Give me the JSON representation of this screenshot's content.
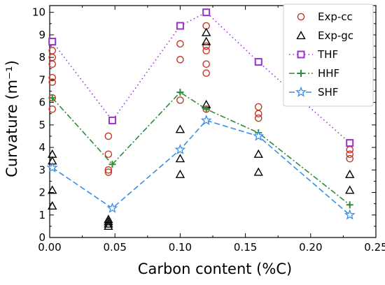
{
  "chart_data": {
    "type": "scatter",
    "xlabel": "Carbon content (%C)",
    "ylabel": "Curvature (m⁻¹)",
    "xlim": [
      0,
      0.25
    ],
    "ylim": [
      0,
      10.3
    ],
    "x_ticks": [
      "0.00",
      "0.05",
      "0.10",
      "0.15",
      "0.20",
      "0.25"
    ],
    "y_ticks": [
      "0",
      "1",
      "2",
      "3",
      "4",
      "5",
      "6",
      "7",
      "8",
      "9",
      "10"
    ],
    "x_tick_values": [
      0,
      0.05,
      0.1,
      0.15,
      0.2,
      0.25
    ],
    "y_tick_values": [
      0,
      1,
      2,
      3,
      4,
      5,
      6,
      7,
      8,
      9,
      10
    ],
    "grid": false,
    "legend_position": "top-right",
    "series": [
      {
        "name": "Exp-cc",
        "kind": "markers",
        "marker": "circle",
        "color": "#c0392b",
        "points": [
          [
            0.002,
            8.3
          ],
          [
            0.002,
            8.0
          ],
          [
            0.002,
            7.7
          ],
          [
            0.002,
            7.1
          ],
          [
            0.002,
            6.9
          ],
          [
            0.002,
            6.2
          ],
          [
            0.002,
            5.7
          ],
          [
            0.045,
            4.5
          ],
          [
            0.045,
            3.7
          ],
          [
            0.045,
            3.0
          ],
          [
            0.045,
            2.9
          ],
          [
            0.1,
            8.6
          ],
          [
            0.1,
            7.9
          ],
          [
            0.1,
            6.1
          ],
          [
            0.12,
            10.0
          ],
          [
            0.12,
            9.4
          ],
          [
            0.12,
            8.5
          ],
          [
            0.12,
            8.3
          ],
          [
            0.12,
            7.7
          ],
          [
            0.12,
            7.3
          ],
          [
            0.12,
            5.7
          ],
          [
            0.16,
            5.8
          ],
          [
            0.16,
            5.5
          ],
          [
            0.16,
            5.3
          ],
          [
            0.23,
            3.9
          ],
          [
            0.23,
            3.7
          ],
          [
            0.23,
            3.5
          ]
        ]
      },
      {
        "name": "Exp-gc",
        "kind": "markers",
        "marker": "triangle",
        "color": "#000000",
        "points": [
          [
            0.002,
            3.7
          ],
          [
            0.002,
            3.4
          ],
          [
            0.002,
            2.1
          ],
          [
            0.002,
            1.4
          ],
          [
            0.045,
            0.8
          ],
          [
            0.045,
            0.7
          ],
          [
            0.045,
            0.6
          ],
          [
            0.045,
            0.5
          ],
          [
            0.1,
            4.8
          ],
          [
            0.1,
            3.5
          ],
          [
            0.1,
            2.8
          ],
          [
            0.12,
            9.1
          ],
          [
            0.12,
            8.7
          ],
          [
            0.12,
            5.9
          ],
          [
            0.16,
            3.7
          ],
          [
            0.16,
            2.9
          ],
          [
            0.23,
            2.8
          ],
          [
            0.23,
            2.1
          ]
        ]
      },
      {
        "name": "THF",
        "kind": "line",
        "marker": "square",
        "dash": "dotted",
        "color": "#9b30d0",
        "points": [
          [
            0.002,
            8.7
          ],
          [
            0.048,
            5.2
          ],
          [
            0.1,
            9.4
          ],
          [
            0.12,
            10.0
          ],
          [
            0.16,
            7.8
          ],
          [
            0.23,
            4.2
          ]
        ]
      },
      {
        "name": "HHF",
        "kind": "line",
        "marker": "plus",
        "dash": "dashdot",
        "color": "#2e8b3a",
        "points": [
          [
            0.002,
            6.2
          ],
          [
            0.048,
            3.25
          ],
          [
            0.1,
            6.45
          ],
          [
            0.12,
            5.7
          ],
          [
            0.16,
            4.65
          ],
          [
            0.23,
            1.45
          ]
        ]
      },
      {
        "name": "SHF",
        "kind": "line",
        "marker": "star",
        "dash": "dashed",
        "color": "#3a8ee6",
        "points": [
          [
            0.002,
            3.1
          ],
          [
            0.048,
            1.3
          ],
          [
            0.1,
            3.9
          ],
          [
            0.12,
            5.2
          ],
          [
            0.16,
            4.5
          ],
          [
            0.23,
            1.0
          ]
        ]
      }
    ]
  }
}
